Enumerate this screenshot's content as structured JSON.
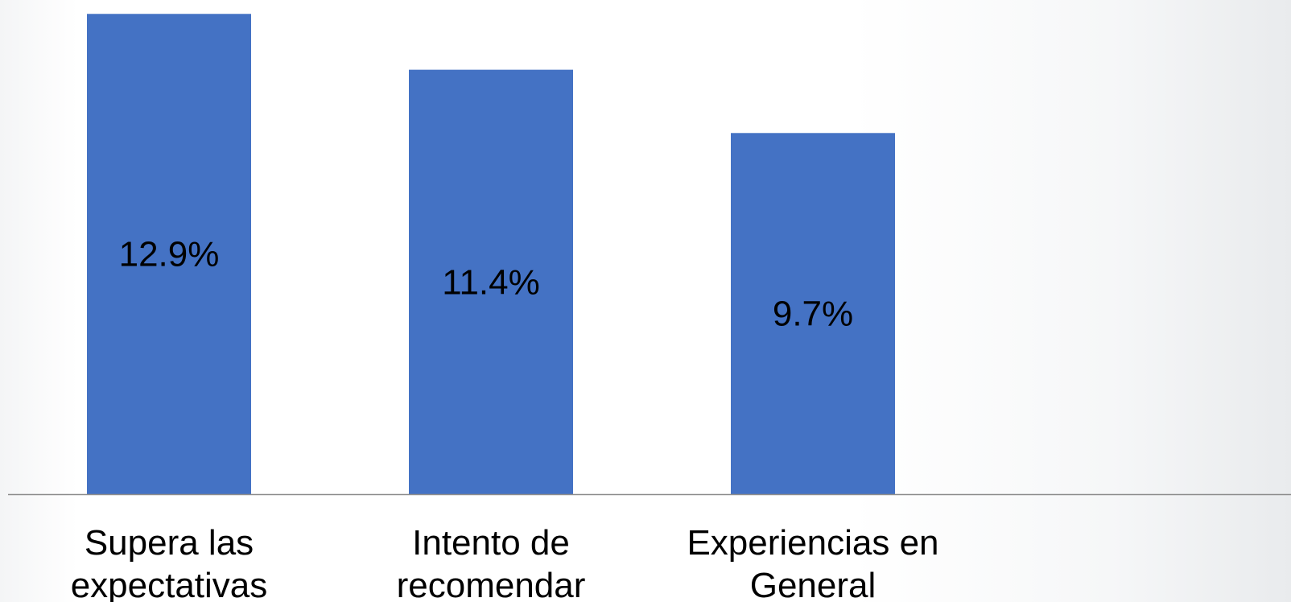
{
  "chart_data": {
    "type": "bar",
    "categories": [
      [
        "Supera las",
        "expectativas"
      ],
      [
        "Intento de",
        "recomendar"
      ],
      [
        "Experiencias en",
        "General"
      ]
    ],
    "values": [
      12.9,
      11.4,
      9.7
    ],
    "data_labels": [
      "12.9%",
      "11.4%",
      "9.7%"
    ],
    "unit": "%",
    "ylim": [
      0,
      13.1
    ],
    "grid": false,
    "legend": "none",
    "bar_color": "#4472c4",
    "baseline_color": "#8c8c8c"
  }
}
